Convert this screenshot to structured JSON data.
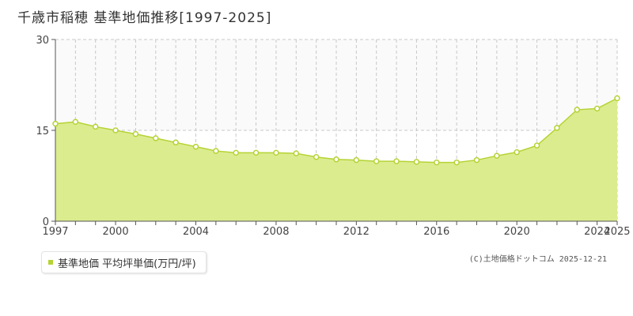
{
  "title": "千歳市稲穂  基準地価推移[1997-2025]",
  "legend_label": "基準地価 平均坪単価(万円/坪)",
  "credit": "(C)土地価格ドットコム 2025-12-21",
  "colors": {
    "fill": "#dbec8f",
    "line": "#b5d334",
    "marker_stroke": "#b5d334",
    "marker_fill": "#ffffff",
    "grid": "#c8c8c8",
    "axis": "#555555"
  },
  "chart_data": {
    "type": "area",
    "x": [
      1997,
      1998,
      1999,
      2000,
      2001,
      2002,
      2003,
      2004,
      2005,
      2006,
      2007,
      2008,
      2009,
      2010,
      2011,
      2012,
      2013,
      2014,
      2015,
      2016,
      2017,
      2018,
      2019,
      2020,
      2021,
      2022,
      2023,
      2024,
      2025
    ],
    "series": [
      {
        "name": "基準地価 平均坪単価(万円/坪)",
        "values": [
          16.1,
          16.4,
          15.6,
          15.0,
          14.4,
          13.7,
          13.0,
          12.3,
          11.6,
          11.3,
          11.3,
          11.3,
          11.2,
          10.6,
          10.2,
          10.1,
          9.9,
          9.9,
          9.8,
          9.7,
          9.7,
          10.1,
          10.8,
          11.4,
          12.5,
          15.4,
          18.4,
          18.6,
          20.3
        ]
      }
    ],
    "ylim": [
      0,
      30
    ],
    "y_ticks": [
      "0",
      "15",
      "30"
    ],
    "x_tick_labels": [
      {
        "value": 1997,
        "label": "1997"
      },
      {
        "value": 2000,
        "label": "2000"
      },
      {
        "value": 2004,
        "label": "2004"
      },
      {
        "value": 2008,
        "label": "2008"
      },
      {
        "value": 2012,
        "label": "2012"
      },
      {
        "value": 2016,
        "label": "2016"
      },
      {
        "value": 2020,
        "label": "2020"
      },
      {
        "value": 2024,
        "label": "2024"
      },
      {
        "value": 2025,
        "label": "2025"
      }
    ],
    "xlabel": "",
    "ylabel": "",
    "grid": true,
    "legend_position": "bottom-left"
  }
}
